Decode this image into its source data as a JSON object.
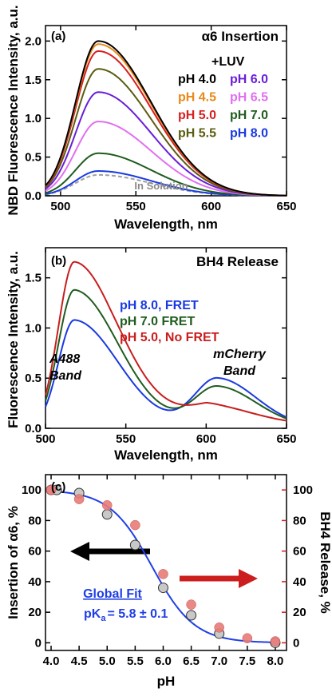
{
  "chart_data": [
    {
      "type": "line",
      "panel_label": "(a)",
      "title": "α6 Insertion",
      "xlabel": "Wavelength, nm",
      "ylabel": "NBD Fluorescence Intensity, a.u.",
      "xlim": [
        490,
        650
      ],
      "ylim": [
        0,
        2.2
      ],
      "xticks": [
        "500",
        "550",
        "600",
        "650"
      ],
      "yticks": [
        "0.0",
        "0.5",
        "1.0",
        "1.5",
        "2.0"
      ],
      "legend_header": "+LUV",
      "series": [
        {
          "name": "pH 4.0",
          "color": "#000000",
          "peak": 2.0
        },
        {
          "name": "pH 4.5",
          "color": "#e8891a",
          "peak": 1.96
        },
        {
          "name": "pH 5.0",
          "color": "#d62020",
          "peak": 1.87
        },
        {
          "name": "pH 5.5",
          "color": "#5c5c10",
          "peak": 1.64
        },
        {
          "name": "pH 6.0",
          "color": "#6a1ed6",
          "peak": 1.34
        },
        {
          "name": "pH 6.5",
          "color": "#e070f0",
          "peak": 0.96
        },
        {
          "name": "pH 7.0",
          "color": "#1f5c1f",
          "peak": 0.55
        },
        {
          "name": "pH 8.0",
          "color": "#1a3ae0",
          "peak": 0.32
        }
      ],
      "solution_series": {
        "name": "In Solution",
        "color": "#a0a0a0",
        "peak": 0.27
      },
      "peak_wavelength": 525
    },
    {
      "type": "line",
      "panel_label": "(b)",
      "title": "BH4 Release",
      "xlabel": "Wavelength, nm",
      "ylabel": "Fluorescence Intensity, a.u.",
      "xlim": [
        500,
        650
      ],
      "ylim": [
        0,
        1.8
      ],
      "xticks": [
        "500",
        "550",
        "600",
        "650"
      ],
      "yticks": [
        "0.0",
        "0.5",
        "1.0",
        "1.5"
      ],
      "annotations": [
        "A488",
        "Band",
        "mCherry",
        "Band"
      ],
      "series": [
        {
          "name": "pH 8.0, FRET",
          "color": "#1a3ae0",
          "a488_peak": 1.08,
          "mcherry_peak": 0.47
        },
        {
          "name": "pH 7.0 FRET",
          "color": "#1f5c1f",
          "a488_peak": 1.38,
          "mcherry_peak": 0.38
        },
        {
          "name": "pH 5.0, No FRET",
          "color": "#c81e1e",
          "a488_peak": 1.66,
          "mcherry_peak": 0.1
        }
      ],
      "a488_peak_wavelength": 518,
      "mcherry_peak_wavelength": 607
    },
    {
      "type": "scatter",
      "panel_label": "(c)",
      "xlabel": "pH",
      "ylabel_left": "Insertion of α6, %",
      "ylabel_right": "BH4 Release, %",
      "xlim": [
        3.9,
        8.2
      ],
      "ylim": [
        -5,
        110
      ],
      "xticks": [
        "4.0",
        "4.5",
        "5.0",
        "5.5",
        "6.0",
        "6.5",
        "7.0",
        "7.5",
        "8.0"
      ],
      "yticks_left": [
        "0",
        "20",
        "40",
        "60",
        "80",
        "100"
      ],
      "yticks_right": [
        "0",
        "20",
        "40",
        "60",
        "80",
        "100"
      ],
      "fit_label": "Global Fit",
      "pka_label": "pK",
      "pka_subscript": "a",
      "pka_value": "= 5.8 ± 0.1",
      "pka": 5.8,
      "insertion": {
        "color": "#c8c8c8",
        "x": [
          4.0,
          4.1,
          4.5,
          5.0,
          5.5,
          6.0,
          6.5,
          7.0,
          8.0
        ],
        "y": [
          100,
          100,
          98,
          84,
          64,
          36,
          18,
          6,
          0
        ]
      },
      "release": {
        "color": "#e87b78",
        "x": [
          4.0,
          4.5,
          5.0,
          5.5,
          6.0,
          6.5,
          7.0,
          7.5,
          8.0
        ],
        "y": [
          100,
          94,
          90,
          77,
          45,
          25,
          10,
          3,
          1
        ]
      },
      "fit_color": "#1f3fe6",
      "left_arrow_color": "#000000",
      "right_arrow_color": "#cc1e1e",
      "right_axis_color": "#cc1e1e"
    }
  ]
}
